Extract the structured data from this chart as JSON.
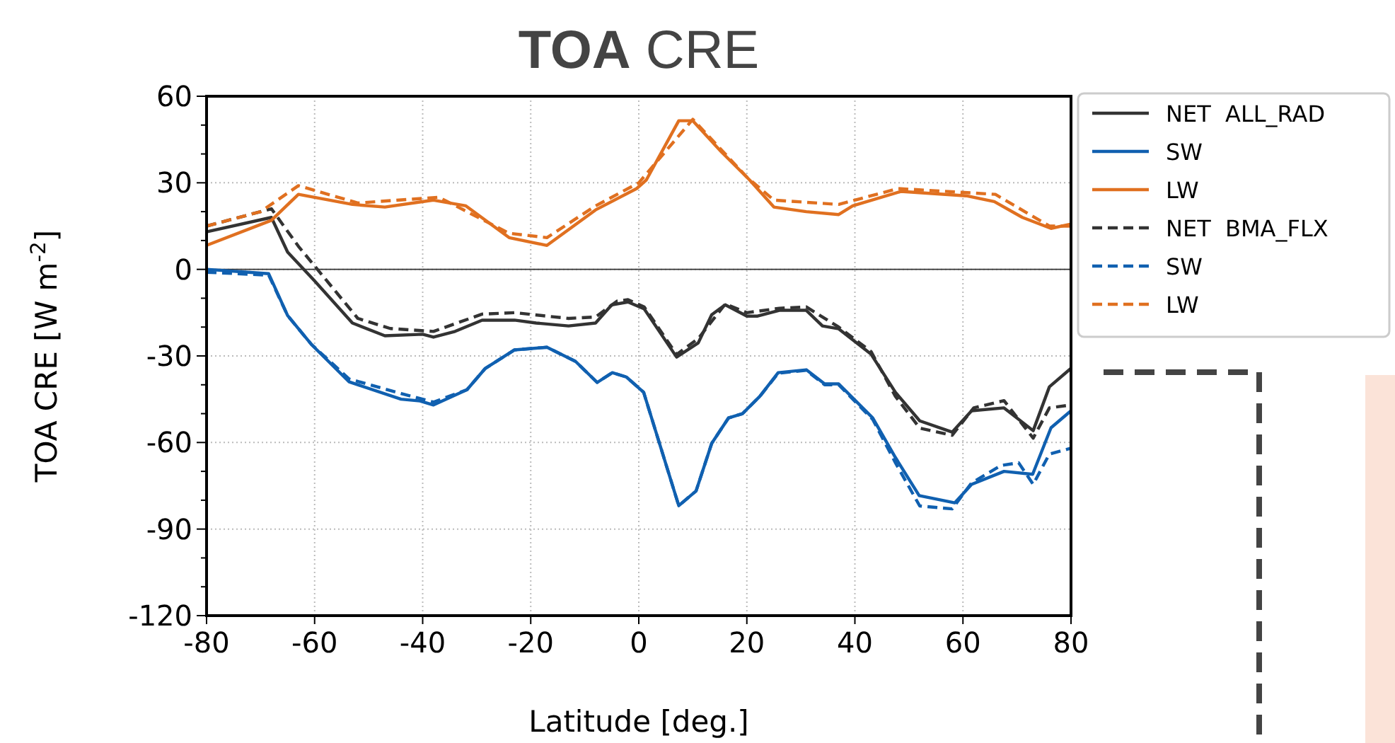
{
  "chart_data": {
    "type": "line",
    "title": "TOA CRE",
    "xlabel": "Latitude [deg.]",
    "ylabel": "TOA CRE [W m$^{-2}$]",
    "xlim": [
      -80,
      80
    ],
    "xticks": [
      -80,
      -60,
      -40,
      -20,
      0,
      20,
      40,
      60,
      80
    ],
    "ylim": [
      -120,
      60
    ],
    "yticks": [
      60,
      30,
      0,
      -30,
      -60,
      -90,
      -120
    ],
    "grid": true,
    "legend": "top right",
    "ref_lines": [
      {
        "axis": "y",
        "value": 0,
        "color": "#333333"
      }
    ],
    "series": [
      {
        "name": "NET  ALL_RAD",
        "color": "#333333",
        "line_style": "solid",
        "x": [
          -80,
          -68,
          -65,
          -60,
          -53,
          -47,
          -40,
          -38,
          -34,
          -29,
          -23,
          -19,
          -13,
          -8,
          -5,
          -2,
          1,
          7,
          11,
          13.5,
          16,
          20,
          22,
          26,
          31,
          34,
          37,
          43,
          47.5,
          52,
          58,
          61.6,
          67.6,
          73,
          76,
          80
        ],
        "values": [
          13,
          18,
          6,
          -4,
          -18.6,
          -23,
          -22.5,
          -23.5,
          -21.5,
          -17.6,
          -17.6,
          -18.6,
          -19.6,
          -18.6,
          -12.3,
          -11.3,
          -13.7,
          -30.4,
          -25.5,
          -15.7,
          -12.3,
          -16.2,
          -16.2,
          -14.2,
          -14.2,
          -19.6,
          -20.6,
          -29.4,
          -42.6,
          -52.5,
          -56.4,
          -49,
          -48,
          -55.9,
          -40.7,
          -34.3
        ]
      },
      {
        "name": "SW",
        "color": "#1060b0",
        "line_style": "solid",
        "x": [
          -80,
          -68.5,
          -65,
          -60.6,
          -53.6,
          -44,
          -40.5,
          -38,
          -31.8,
          -28.4,
          -23,
          -17,
          -11.7,
          -7.7,
          -4.9,
          -2.3,
          0.9,
          7.4,
          10.6,
          13.5,
          16.6,
          19.2,
          22.4,
          25.8,
          31,
          34.4,
          37,
          43.3,
          47.5,
          51.9,
          58.5,
          61.6,
          67.6,
          72.9,
          76.3,
          80
        ],
        "values": [
          0,
          -1.5,
          -16,
          -26,
          -39,
          -45,
          -45.6,
          -47,
          -41.7,
          -34.3,
          -27.9,
          -27,
          -31.9,
          -39.2,
          -35.8,
          -37.3,
          -42.6,
          -81.9,
          -76.8,
          -60.3,
          -51.5,
          -50,
          -44,
          -35.8,
          -34.8,
          -39.7,
          -39.7,
          -51.5,
          -65.2,
          -78.4,
          -80.9,
          -74.5,
          -70,
          -71,
          -54.9,
          -49
        ]
      },
      {
        "name": "LW",
        "color": "#e07020",
        "line_style": "solid",
        "x": [
          -80,
          -68,
          -63,
          -53,
          -47,
          -38,
          -32,
          -24,
          -17,
          -8,
          -0.4,
          1.4,
          7.4,
          10,
          15.3,
          20.5,
          25,
          31,
          37,
          39.6,
          48.5,
          60.6,
          65.8,
          71,
          76.3,
          80
        ],
        "values": [
          8.3,
          17,
          26,
          22.5,
          21.6,
          24,
          22,
          11,
          8.3,
          20.6,
          28,
          31,
          51.5,
          51.5,
          40.7,
          31,
          21.6,
          20,
          19,
          22,
          27,
          25.5,
          23.5,
          18,
          14.2,
          15.7
        ]
      },
      {
        "name": "NET  BMA_FLX",
        "color": "#333333",
        "line_style": "dashed",
        "x": [
          -80,
          -68,
          -63,
          -52,
          -46,
          -38,
          -29,
          -23,
          -13,
          -8,
          -4,
          -2,
          1,
          7,
          11,
          16,
          20,
          26,
          31,
          37,
          43,
          47.5,
          52,
          58,
          62,
          67.6,
          73,
          76,
          80
        ],
        "values": [
          15,
          21,
          8,
          -17,
          -20.5,
          -21.5,
          -15.5,
          -15,
          -17,
          -16.5,
          -11,
          -10.5,
          -13,
          -29.5,
          -24,
          -12,
          -15,
          -13.5,
          -13,
          -20,
          -28.5,
          -44,
          -55,
          -57.5,
          -48,
          -45.5,
          -58.5,
          -48,
          -47
        ]
      },
      {
        "name": "SW",
        "color": "#1060b0",
        "line_style": "dashed",
        "x": [
          -80,
          -68.5,
          -65,
          -60.6,
          -53.6,
          -44,
          -38,
          -31.8,
          -28.4,
          -23,
          -17,
          -11.7,
          -7.7,
          -4.9,
          -2.3,
          0.9,
          7.4,
          10.6,
          13.5,
          16.6,
          19.2,
          22.4,
          25.8,
          31,
          34.4,
          37,
          43.3,
          47.5,
          52,
          58,
          61.6,
          67,
          70.3,
          73,
          76,
          80
        ],
        "values": [
          -1,
          -2,
          -16,
          -26,
          -38,
          -43,
          -46,
          -41.7,
          -34.3,
          -27.9,
          -27,
          -31.9,
          -39.2,
          -35.8,
          -37.3,
          -42.6,
          -81.9,
          -76.8,
          -60.3,
          -51.5,
          -50,
          -44,
          -36,
          -35,
          -40,
          -40,
          -52,
          -67,
          -82,
          -83,
          -74,
          -68,
          -67,
          -74.5,
          -64,
          -62
        ]
      },
      {
        "name": "LW",
        "color": "#e07020",
        "line_style": "dashed",
        "x": [
          -80,
          -70,
          -63,
          -52,
          -37,
          -24,
          -17,
          -8,
          0,
          10,
          20,
          25,
          37,
          48,
          66,
          76,
          80
        ],
        "values": [
          15,
          20,
          29,
          23,
          25,
          12.5,
          11,
          22,
          30,
          52,
          32,
          24,
          22.5,
          28,
          26,
          15,
          15
        ]
      }
    ]
  }
}
